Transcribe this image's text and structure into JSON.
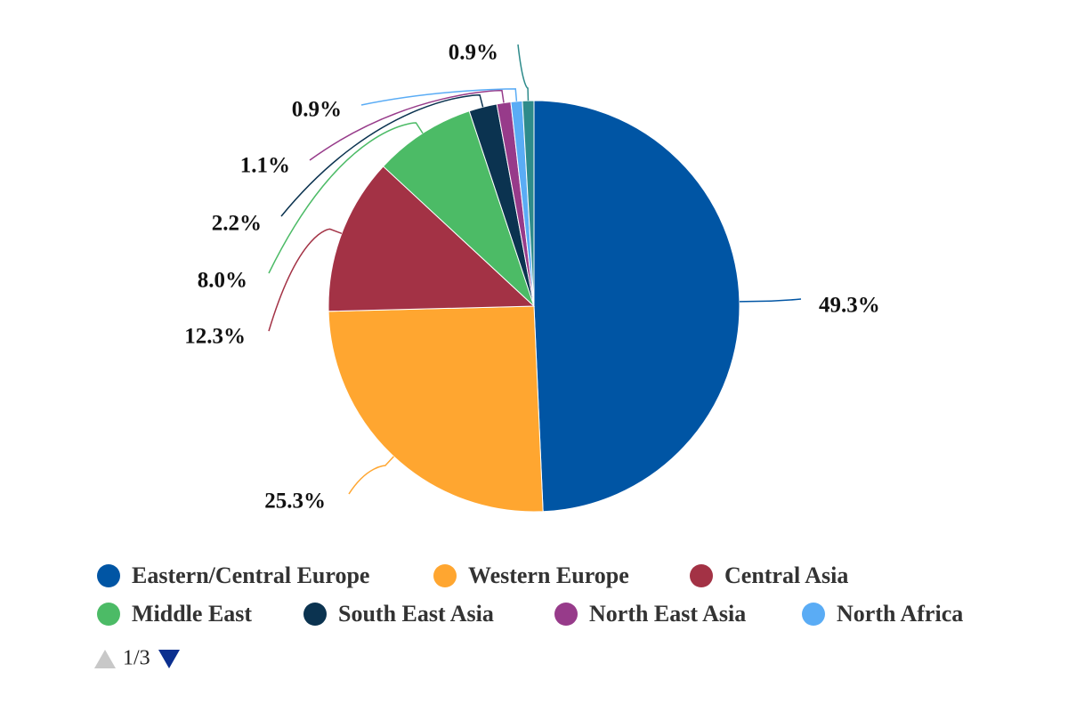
{
  "chart_data": {
    "type": "pie",
    "categories": [
      "Eastern/Central Europe",
      "Western Europe",
      "Central Asia",
      "Middle East",
      "South East Asia",
      "North East Asia",
      "North Africa",
      null
    ],
    "values": [
      49.3,
      25.3,
      12.3,
      8.0,
      2.2,
      1.1,
      0.9,
      0.9
    ],
    "value_labels": [
      "49.3%",
      "25.3%",
      "12.3%",
      "8.0%",
      "2.2%",
      "1.1%",
      "0.9%",
      "0.9%"
    ],
    "colors": [
      "#0055a4",
      "#ffa630",
      "#a33245",
      "#4cbb66",
      "#0b3350",
      "#973b8a",
      "#5aacf5",
      "#2e8b8b"
    ],
    "legend_page": "1/3"
  }
}
